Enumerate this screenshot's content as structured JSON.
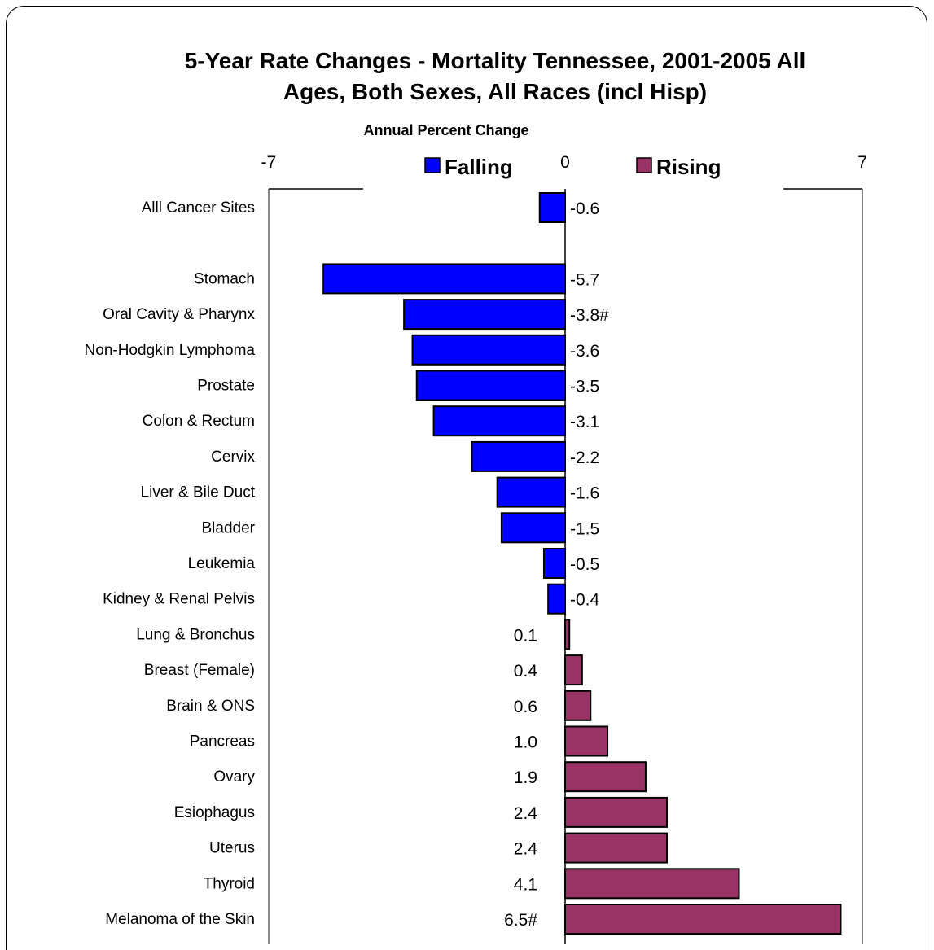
{
  "chart_data": {
    "type": "bar",
    "orientation": "horizontal",
    "title_lines": [
      "5-Year Rate Changes - Mortality Tennessee, 2001-2005 All",
      "Ages, Both Sexes, All Races (incl Hisp)"
    ],
    "xlabel": "Annual Percent Change",
    "xlim": [
      -7,
      7
    ],
    "xticks": [
      "-7",
      "0",
      "7"
    ],
    "legend": [
      {
        "label": "Falling",
        "color": "#0000ff"
      },
      {
        "label": "Rising",
        "color": "#993366"
      }
    ],
    "legend_position": "top",
    "categories": [
      "Alll Cancer Sites",
      "",
      "Stomach",
      "Oral Cavity & Pharynx",
      "Non-Hodgkin Lymphoma",
      "Prostate",
      "Colon & Rectum",
      "Cervix",
      "Liver & Bile Duct",
      "Bladder",
      "Leukemia",
      "Kidney & Renal Pelvis",
      "Lung & Bronchus",
      "Breast (Female)",
      "Brain & ONS",
      "Pancreas",
      "Ovary",
      "Esiophagus",
      "Uterus",
      "Thyroid",
      "Melanoma of the Skin"
    ],
    "values": [
      -0.6,
      null,
      -5.7,
      -3.8,
      -3.6,
      -3.5,
      -3.1,
      -2.2,
      -1.6,
      -1.5,
      -0.5,
      -0.4,
      0.1,
      0.4,
      0.6,
      1.0,
      1.9,
      2.4,
      2.4,
      4.1,
      6.5
    ],
    "value_labels": [
      "-0.6",
      "",
      "-5.7",
      "-3.8#",
      "-3.6",
      "-3.5",
      "-3.1",
      "-2.2",
      "-1.6",
      "-1.5",
      "-0.5",
      "-0.4",
      "0.1",
      "0.4",
      "0.6",
      "1.0",
      "1.9",
      "2.4",
      "2.4",
      "4.1",
      "6.5#"
    ],
    "falling_color": "#0000ff",
    "rising_color": "#993366"
  }
}
